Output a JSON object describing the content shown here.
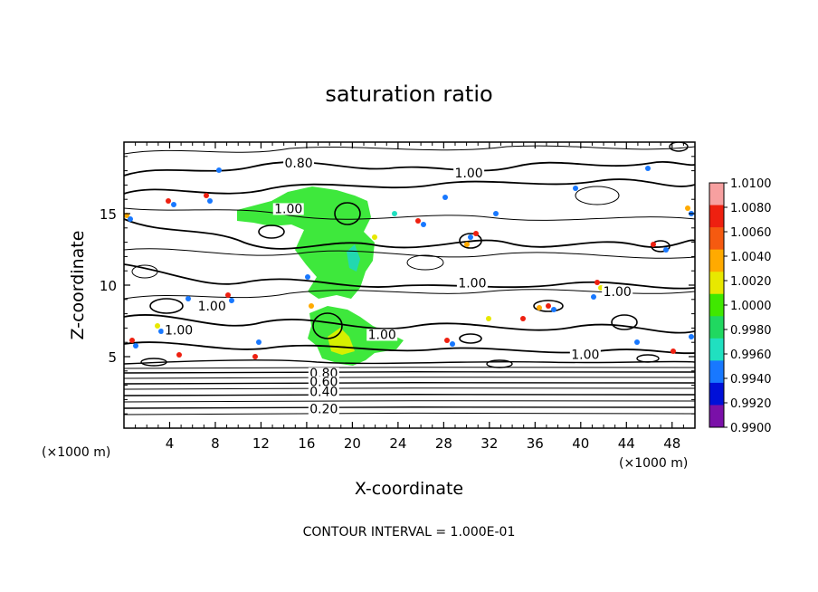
{
  "chart_data": {
    "type": "contour",
    "title": "saturation ratio",
    "xlabel": "X-coordinate",
    "ylabel": "Z-coordinate",
    "x_unit_label_left": "(×1000 m)",
    "x_unit_label_right": "(×1000 m)",
    "footer": "CONTOUR INTERVAL = 1.000E-01",
    "xlim": [
      0,
      50
    ],
    "ylim": [
      0,
      20
    ],
    "x_ticks": [
      4,
      8,
      12,
      16,
      20,
      24,
      28,
      32,
      36,
      40,
      44,
      48
    ],
    "y_ticks": [
      5,
      10,
      15
    ],
    "contour_labels": [
      {
        "text": "0.80",
        "x": 15.3,
        "y": 18.3
      },
      {
        "text": "1.00",
        "x": 30.2,
        "y": 17.6
      },
      {
        "text": "1.00",
        "x": 14.4,
        "y": 15.1
      },
      {
        "text": "1.00",
        "x": 30.5,
        "y": 9.9
      },
      {
        "text": "1.00",
        "x": 43.2,
        "y": 9.3
      },
      {
        "text": "1.00",
        "x": 7.7,
        "y": 8.3
      },
      {
        "text": "1.00",
        "x": 4.8,
        "y": 6.6
      },
      {
        "text": "1.00",
        "x": 22.6,
        "y": 6.3
      },
      {
        "text": "1.00",
        "x": 40.4,
        "y": 4.9
      },
      {
        "text": "0.80",
        "x": 17.5,
        "y": 3.6
      },
      {
        "text": "0.60",
        "x": 17.5,
        "y": 3.0
      },
      {
        "text": "0.40",
        "x": 17.5,
        "y": 2.3
      },
      {
        "text": "0.20",
        "x": 17.5,
        "y": 1.1
      }
    ],
    "colorbar": {
      "levels": [
        "1.0100",
        "1.0080",
        "1.0060",
        "1.0040",
        "1.0020",
        "1.0000",
        "0.9980",
        "0.9960",
        "0.9940",
        "0.9920",
        "0.9900"
      ],
      "colors": [
        "#f7a0a0",
        "#ee2010",
        "#f55a10",
        "#ffaa00",
        "#e8e800",
        "#40e800",
        "#20d860",
        "#20e0c0",
        "#1878ff",
        "#0010d8",
        "#7a10a8"
      ]
    }
  }
}
